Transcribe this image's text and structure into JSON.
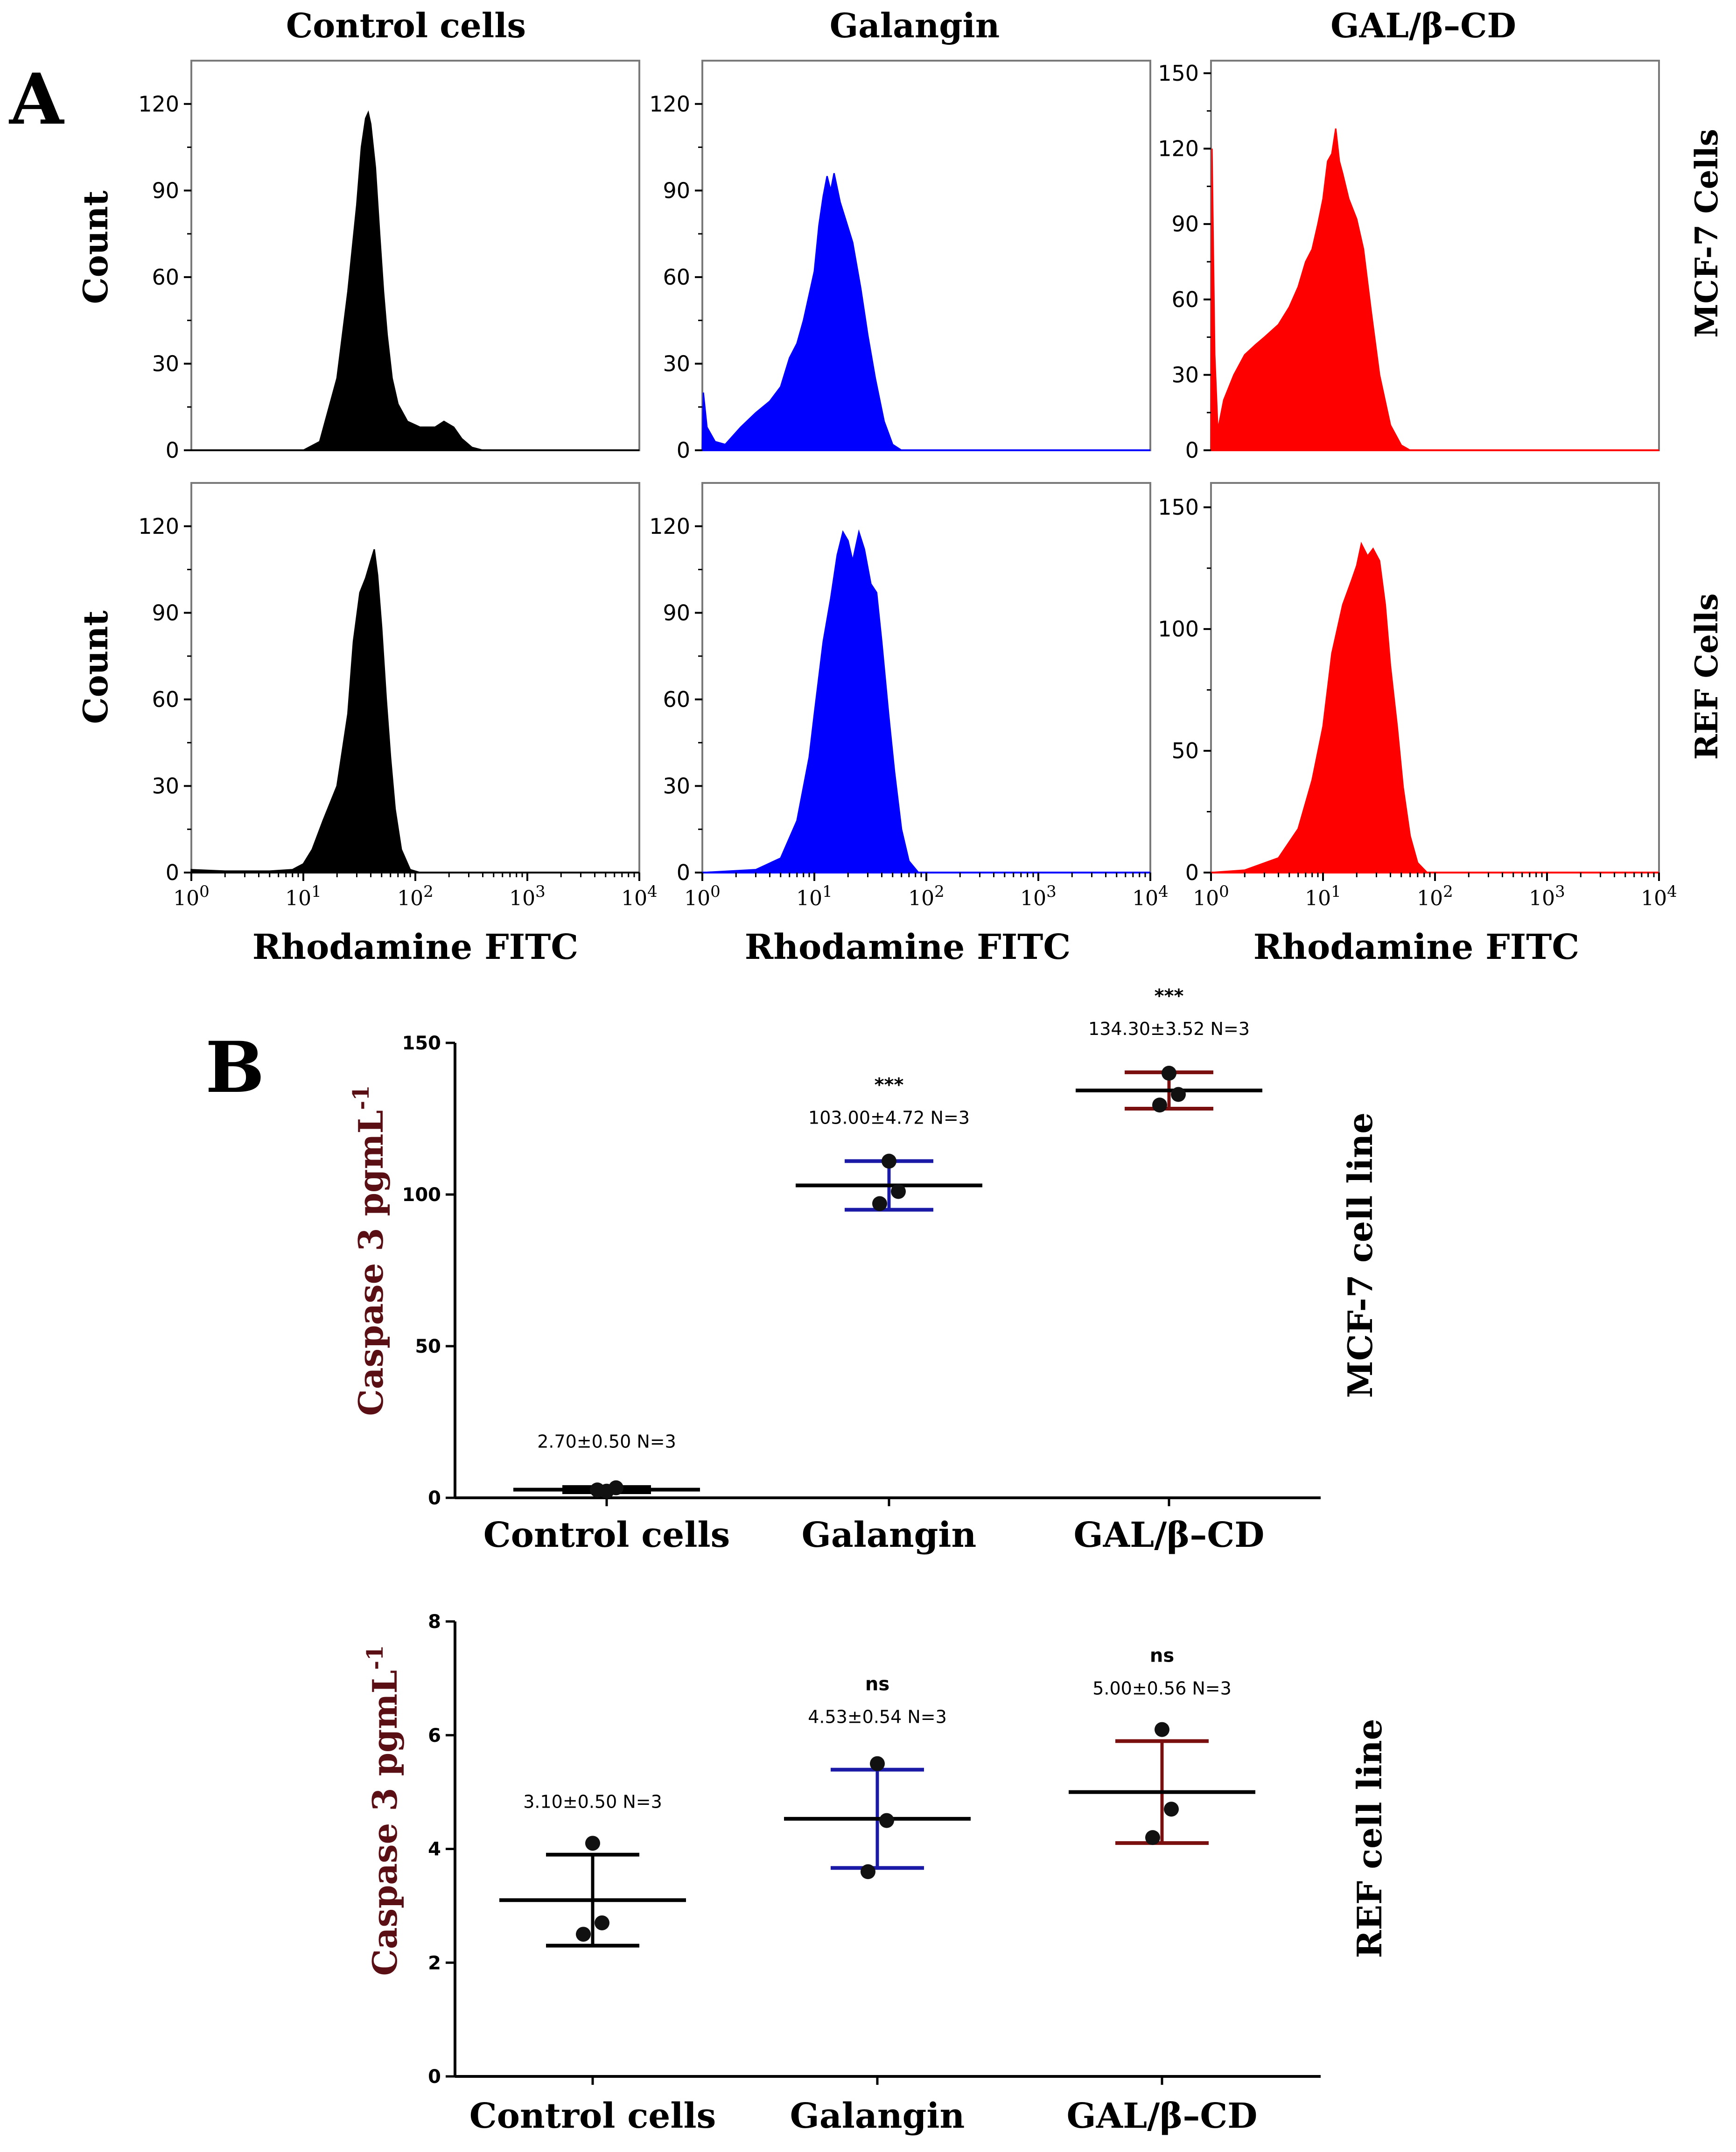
{
  "figure": {
    "panel_a_letter": "A",
    "panel_b_letter": "B",
    "column_titles": [
      "Control cells",
      "Galangin",
      "GAL/β–CD"
    ],
    "row_titles": [
      "MCF-7 Cells",
      "REF Cells"
    ],
    "histogram_xlabel": "Rhodamine FITC",
    "histogram_ylabel": "Count",
    "x_tick_labels": [
      {
        "base": "10",
        "exp": "0"
      },
      {
        "base": "10",
        "exp": "1"
      },
      {
        "base": "10",
        "exp": "2"
      },
      {
        "base": "10",
        "exp": "3"
      },
      {
        "base": "10",
        "exp": "4"
      }
    ],
    "b_ylabel": "Caspase 3  pgmL",
    "b_ylabel_sup": "-1",
    "b_row_titles": [
      "MCF-7 cell line",
      "REF cell line"
    ]
  },
  "colors": {
    "control": "#000000",
    "galangin": "#0000ff",
    "galbcd": "#ff0000",
    "galangin_bar": "#1a1aa6",
    "galbcd_bar": "#7a0f0f",
    "axis": "#000000"
  },
  "chart_data": [
    {
      "type": "area",
      "title": "Control cells",
      "row": "MCF-7 Cells",
      "xscale": "log",
      "xlim": [
        1,
        10000
      ],
      "ylim": [
        0,
        135
      ],
      "yticks": [
        0,
        30,
        60,
        90,
        120
      ],
      "xlabel": "Rhodamine FITC",
      "ylabel": "Count",
      "color": "#000000",
      "points": [
        [
          1,
          0
        ],
        [
          10,
          0
        ],
        [
          14,
          3
        ],
        [
          20,
          25
        ],
        [
          25,
          55
        ],
        [
          30,
          85
        ],
        [
          33,
          105
        ],
        [
          36,
          115
        ],
        [
          38,
          117
        ],
        [
          40,
          113
        ],
        [
          44,
          98
        ],
        [
          48,
          75
        ],
        [
          52,
          55
        ],
        [
          56,
          40
        ],
        [
          62,
          25
        ],
        [
          70,
          16
        ],
        [
          85,
          10
        ],
        [
          110,
          8
        ],
        [
          150,
          8
        ],
        [
          180,
          10
        ],
        [
          220,
          8
        ],
        [
          260,
          4
        ],
        [
          320,
          1
        ],
        [
          400,
          0
        ],
        [
          10000,
          0
        ]
      ]
    },
    {
      "type": "area",
      "title": "Galangin",
      "row": "MCF-7 Cells",
      "xscale": "log",
      "xlim": [
        1,
        10000
      ],
      "ylim": [
        0,
        135
      ],
      "yticks": [
        0,
        30,
        60,
        90,
        120
      ],
      "xlabel": "Rhodamine FITC",
      "ylabel": "Count",
      "color": "#0000ff",
      "points": [
        [
          1,
          0
        ],
        [
          1.02,
          20
        ],
        [
          1.1,
          8
        ],
        [
          1.3,
          3
        ],
        [
          1.6,
          2
        ],
        [
          2.2,
          8
        ],
        [
          3,
          13
        ],
        [
          4,
          17
        ],
        [
          5,
          22
        ],
        [
          6,
          32
        ],
        [
          7,
          37
        ],
        [
          8,
          45
        ],
        [
          10,
          62
        ],
        [
          11,
          78
        ],
        [
          12,
          88
        ],
        [
          13,
          95
        ],
        [
          14,
          90
        ],
        [
          15,
          96
        ],
        [
          17,
          86
        ],
        [
          19,
          80
        ],
        [
          22,
          72
        ],
        [
          26,
          56
        ],
        [
          30,
          40
        ],
        [
          35,
          25
        ],
        [
          42,
          10
        ],
        [
          50,
          2
        ],
        [
          60,
          0
        ],
        [
          10000,
          0
        ]
      ]
    },
    {
      "type": "area",
      "title": "GAL/β–CD",
      "row": "MCF-7 Cells",
      "xscale": "log",
      "xlim": [
        1,
        10000
      ],
      "ylim": [
        0,
        155
      ],
      "yticks": [
        0,
        30,
        60,
        90,
        120,
        150
      ],
      "xlabel": "Rhodamine FITC",
      "ylabel": "Count",
      "color": "#ff0000",
      "points": [
        [
          1,
          0
        ],
        [
          1.02,
          120
        ],
        [
          1.08,
          38
        ],
        [
          1.15,
          8
        ],
        [
          1.3,
          20
        ],
        [
          1.6,
          30
        ],
        [
          2,
          38
        ],
        [
          2.5,
          42
        ],
        [
          3,
          45
        ],
        [
          4,
          50
        ],
        [
          5,
          57
        ],
        [
          6,
          65
        ],
        [
          7,
          75
        ],
        [
          8,
          80
        ],
        [
          9,
          90
        ],
        [
          10,
          100
        ],
        [
          11,
          115
        ],
        [
          12,
          118
        ],
        [
          13,
          128
        ],
        [
          14,
          115
        ],
        [
          15,
          110
        ],
        [
          17,
          100
        ],
        [
          20,
          92
        ],
        [
          23,
          80
        ],
        [
          27,
          55
        ],
        [
          32,
          30
        ],
        [
          40,
          10
        ],
        [
          50,
          2
        ],
        [
          60,
          0
        ],
        [
          10000,
          0
        ]
      ]
    },
    {
      "type": "area",
      "title": "Control cells",
      "row": "REF Cells",
      "xscale": "log",
      "xlim": [
        1,
        10000
      ],
      "ylim": [
        0,
        135
      ],
      "yticks": [
        0,
        30,
        60,
        90,
        120
      ],
      "xlabel": "Rhodamine FITC",
      "ylabel": "Count",
      "color": "#000000",
      "points": [
        [
          1,
          1
        ],
        [
          2,
          0.5
        ],
        [
          5,
          0.5
        ],
        [
          8,
          1
        ],
        [
          10,
          3
        ],
        [
          12,
          8
        ],
        [
          15,
          18
        ],
        [
          20,
          30
        ],
        [
          25,
          55
        ],
        [
          28,
          80
        ],
        [
          32,
          97
        ],
        [
          36,
          102
        ],
        [
          40,
          108
        ],
        [
          43,
          112
        ],
        [
          46,
          103
        ],
        [
          50,
          85
        ],
        [
          55,
          60
        ],
        [
          60,
          40
        ],
        [
          66,
          22
        ],
        [
          75,
          8
        ],
        [
          90,
          1
        ],
        [
          110,
          0
        ],
        [
          10000,
          0
        ]
      ]
    },
    {
      "type": "area",
      "title": "Galangin",
      "row": "REF Cells",
      "xscale": "log",
      "xlim": [
        1,
        10000
      ],
      "ylim": [
        0,
        135
      ],
      "yticks": [
        0,
        30,
        60,
        90,
        120
      ],
      "xlabel": "Rhodamine FITC",
      "ylabel": "Count",
      "color": "#0000ff",
      "points": [
        [
          1,
          0
        ],
        [
          3,
          1
        ],
        [
          5,
          5
        ],
        [
          7,
          18
        ],
        [
          9,
          40
        ],
        [
          10,
          55
        ],
        [
          12,
          80
        ],
        [
          14,
          95
        ],
        [
          16,
          110
        ],
        [
          18,
          118
        ],
        [
          20,
          115
        ],
        [
          22,
          108
        ],
        [
          25,
          118
        ],
        [
          28,
          112
        ],
        [
          32,
          100
        ],
        [
          36,
          97
        ],
        [
          40,
          80
        ],
        [
          46,
          55
        ],
        [
          52,
          35
        ],
        [
          60,
          15
        ],
        [
          70,
          4
        ],
        [
          85,
          0
        ],
        [
          10000,
          0
        ]
      ]
    },
    {
      "type": "area",
      "title": "GAL/β–CD",
      "row": "REF Cells",
      "xscale": "log",
      "xlim": [
        1,
        10000
      ],
      "ylim": [
        0,
        160
      ],
      "yticks": [
        0,
        50,
        100,
        150
      ],
      "xlabel": "Rhodamine FITC",
      "ylabel": "Count",
      "color": "#ff0000",
      "points": [
        [
          1,
          0
        ],
        [
          2,
          1
        ],
        [
          4,
          6
        ],
        [
          6,
          18
        ],
        [
          8,
          38
        ],
        [
          10,
          60
        ],
        [
          12,
          90
        ],
        [
          15,
          110
        ],
        [
          18,
          120
        ],
        [
          20,
          126
        ],
        [
          22,
          135
        ],
        [
          25,
          130
        ],
        [
          28,
          133
        ],
        [
          32,
          128
        ],
        [
          36,
          110
        ],
        [
          40,
          85
        ],
        [
          46,
          60
        ],
        [
          52,
          35
        ],
        [
          60,
          15
        ],
        [
          70,
          4
        ],
        [
          85,
          0
        ],
        [
          10000,
          0
        ]
      ]
    },
    {
      "type": "scatter",
      "title": "MCF-7 cell line",
      "ylabel": "Caspase 3  pgmL-1",
      "ylim": [
        0,
        150
      ],
      "yticks": [
        0,
        50,
        100,
        150
      ],
      "categories": [
        "Control cells",
        "Galangin",
        "GAL/β–CD"
      ],
      "groups": [
        {
          "category": "Control cells",
          "mean": 2.7,
          "sd": 0.5,
          "n": 3,
          "label": "2.70±0.50 N=3",
          "sig": "",
          "points": [
            2.2,
            3.3,
            2.6
          ]
        },
        {
          "category": "Galangin",
          "mean": 103.0,
          "sd": 4.72,
          "n": 3,
          "label": "103.00±4.72 N=3",
          "sig": "***",
          "points": [
            111.0,
            101.0,
            97.0
          ]
        },
        {
          "category": "GAL/β–CD",
          "mean": 134.3,
          "sd": 3.52,
          "n": 3,
          "label": "134.30±3.52 N=3",
          "sig": "***",
          "points": [
            140.0,
            133.0,
            129.5
          ]
        }
      ]
    },
    {
      "type": "scatter",
      "title": "REF cell line",
      "ylabel": "Caspase 3  pgmL-1",
      "ylim": [
        0,
        8
      ],
      "yticks": [
        0,
        2,
        4,
        6,
        8
      ],
      "categories": [
        "Control cells",
        "Galangin",
        "GAL/β–CD"
      ],
      "groups": [
        {
          "category": "Control cells",
          "mean": 3.1,
          "sd": 0.5,
          "n": 3,
          "label": "3.10±0.50 N=3",
          "sig": "",
          "points": [
            4.1,
            2.7,
            2.5
          ]
        },
        {
          "category": "Galangin",
          "mean": 4.53,
          "sd": 0.54,
          "n": 3,
          "label": "4.53±0.54 N=3",
          "sig": "ns",
          "points": [
            5.5,
            4.5,
            3.6
          ]
        },
        {
          "category": "GAL/β–CD",
          "mean": 5.0,
          "sd": 0.56,
          "n": 3,
          "label": "5.00±0.56 N=3",
          "sig": "ns",
          "points": [
            6.1,
            4.7,
            4.2
          ]
        }
      ]
    }
  ]
}
